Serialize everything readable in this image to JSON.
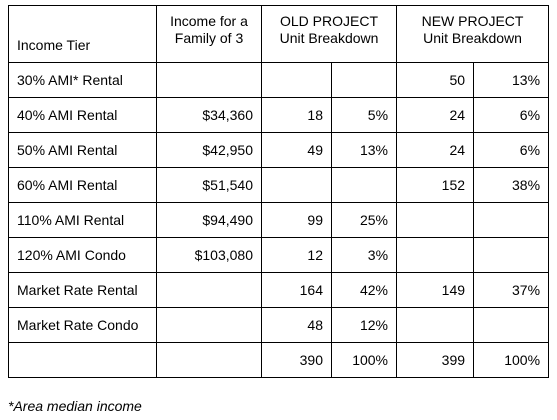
{
  "headers": {
    "tier": "Income Tier",
    "income_line1": "Income for a",
    "income_line2": "Family of 3",
    "old_line1": "OLD PROJECT",
    "old_line2": "Unit Breakdown",
    "new_line1": "NEW PROJECT",
    "new_line2": "Unit Breakdown"
  },
  "rows": [
    {
      "tier": "30% AMI* Rental",
      "income": "",
      "old_units": "",
      "old_pct": "",
      "new_units": "50",
      "new_pct": "13%"
    },
    {
      "tier": "40% AMI Rental",
      "income": "$34,360",
      "old_units": "18",
      "old_pct": "5%",
      "new_units": "24",
      "new_pct": "6%"
    },
    {
      "tier": "50% AMI Rental",
      "income": "$42,950",
      "old_units": "49",
      "old_pct": "13%",
      "new_units": "24",
      "new_pct": "6%"
    },
    {
      "tier": "60% AMI Rental",
      "income": "$51,540",
      "old_units": "",
      "old_pct": "",
      "new_units": "152",
      "new_pct": "38%"
    },
    {
      "tier": "110% AMI Rental",
      "income": "$94,490",
      "old_units": "99",
      "old_pct": "25%",
      "new_units": "",
      "new_pct": ""
    },
    {
      "tier": "120% AMI Condo",
      "income": "$103,080",
      "old_units": "12",
      "old_pct": "3%",
      "new_units": "",
      "new_pct": ""
    },
    {
      "tier": "Market Rate Rental",
      "income": "",
      "old_units": "164",
      "old_pct": "42%",
      "new_units": "149",
      "new_pct": "37%"
    },
    {
      "tier": "Market Rate Condo",
      "income": "",
      "old_units": "48",
      "old_pct": "12%",
      "new_units": "",
      "new_pct": ""
    }
  ],
  "totals": {
    "tier": "",
    "income": "",
    "old_units": "390",
    "old_pct": "100%",
    "new_units": "399",
    "new_pct": "100%"
  },
  "footnote": "*Area median income"
}
